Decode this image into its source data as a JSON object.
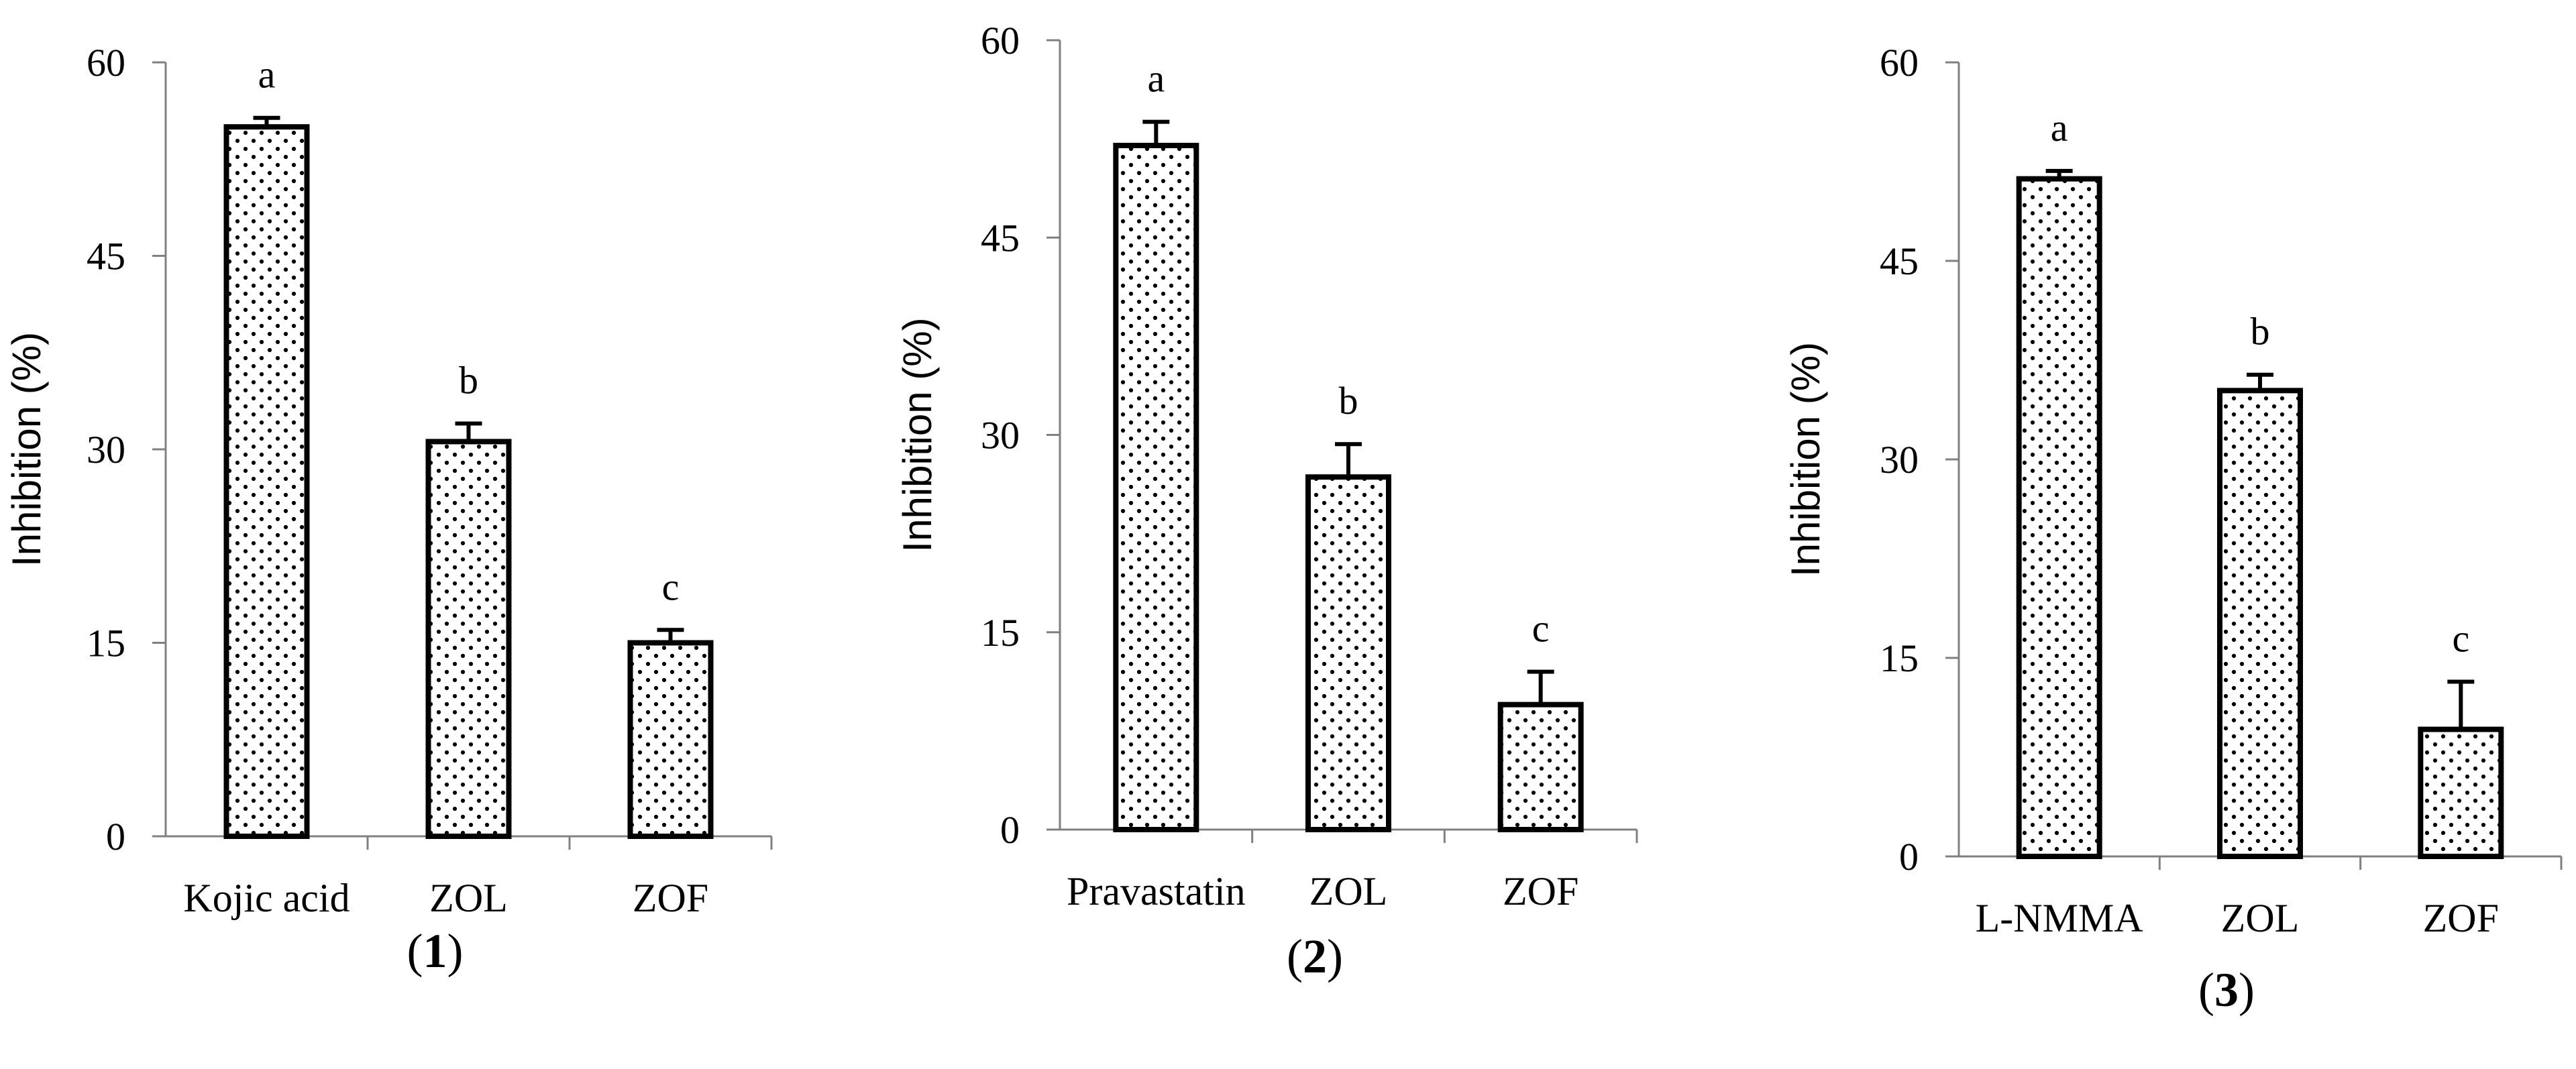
{
  "chart_data": [
    {
      "type": "bar",
      "panel_label": "1",
      "ylabel": "Inhibition (%)",
      "ylim": [
        0,
        60
      ],
      "yticks": [
        "0",
        "15",
        "30",
        "45",
        "60"
      ],
      "categories": [
        "Kojic acid",
        "ZOL",
        "ZOF"
      ],
      "values": [
        55.0,
        30.6,
        15.0
      ],
      "errors": [
        0.7,
        1.4,
        1.0
      ],
      "significance": [
        "a",
        "b",
        "c"
      ],
      "fill_pattern": "dotted",
      "grid": false,
      "legend": "none"
    },
    {
      "type": "bar",
      "panel_label": "2",
      "ylabel": "Inhibition (%)",
      "ylim": [
        0,
        60
      ],
      "yticks": [
        "0",
        "15",
        "30",
        "45",
        "60"
      ],
      "categories": [
        "Pravastatin",
        "ZOL",
        "ZOF"
      ],
      "values": [
        52.0,
        26.8,
        9.5
      ],
      "errors": [
        1.8,
        2.5,
        2.5
      ],
      "significance": [
        "a",
        "b",
        "c"
      ],
      "fill_pattern": "dotted",
      "grid": false,
      "legend": "none"
    },
    {
      "type": "bar",
      "panel_label": "3",
      "ylabel": "Inhibition (%)",
      "ylim": [
        0,
        60
      ],
      "yticks": [
        "0",
        "15",
        "30",
        "45",
        "60"
      ],
      "categories": [
        "L-NMMA",
        "ZOL",
        "ZOF"
      ],
      "values": [
        51.2,
        35.2,
        9.6
      ],
      "errors": [
        0.6,
        1.2,
        3.6
      ],
      "significance": [
        "a",
        "b",
        "c"
      ],
      "fill_pattern": "dotted",
      "grid": false,
      "legend": "none"
    }
  ],
  "colors": {
    "bar_stroke": "#000000",
    "bar_fill": "#ffffff",
    "dot": "#000000",
    "axis": "#808080",
    "background": "#ffffff"
  }
}
